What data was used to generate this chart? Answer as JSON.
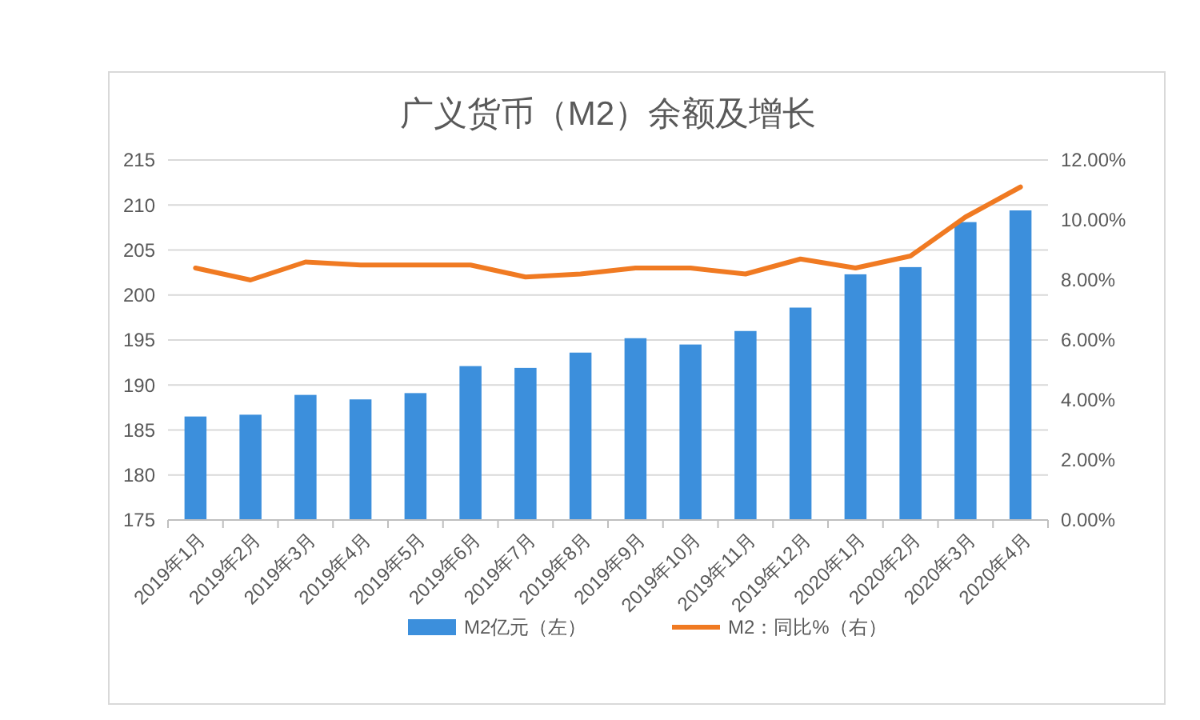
{
  "chart_data": {
    "type": "bar",
    "title": "广义货币（M2）余额及增长",
    "categories": [
      "2019年1月",
      "2019年2月",
      "2019年3月",
      "2019年4月",
      "2019年5月",
      "2019年6月",
      "2019年7月",
      "2019年8月",
      "2019年9月",
      "2019年10月",
      "2019年11月",
      "2019年12月",
      "2020年1月",
      "2020年2月",
      "2020年3月",
      "2020年4月"
    ],
    "series": [
      {
        "name": "M2亿元（左）",
        "color": "#3c8fdc",
        "values": [
          186.5,
          186.7,
          188.9,
          188.4,
          189.1,
          192.1,
          191.9,
          193.6,
          195.2,
          194.5,
          196.0,
          198.6,
          202.3,
          203.1,
          208.1,
          209.4
        ]
      },
      {
        "name": "M2：同比%（右）",
        "type": "line",
        "axis": "y2",
        "color": "#f07a22",
        "values": [
          8.4,
          8.0,
          8.6,
          8.5,
          8.5,
          8.5,
          8.1,
          8.2,
          8.4,
          8.4,
          8.2,
          8.7,
          8.4,
          8.8,
          10.1,
          11.1
        ]
      }
    ],
    "ylim": [
      175,
      215
    ],
    "yticks": [
      175,
      180,
      185,
      190,
      195,
      200,
      205,
      210,
      215
    ],
    "y2lim": [
      0,
      12
    ],
    "y2ticks": [
      {
        "value": 0,
        "label": "0.00%"
      },
      {
        "value": 2,
        "label": "2.00%"
      },
      {
        "value": 4,
        "label": "4.00%"
      },
      {
        "value": 6,
        "label": "6.00%"
      },
      {
        "value": 8,
        "label": "8.00%"
      },
      {
        "value": 10,
        "label": "10.00%"
      },
      {
        "value": 12,
        "label": "12.00%"
      }
    ],
    "grid": "y",
    "legend": "bottom",
    "marker": "none",
    "line_style": "solid"
  }
}
